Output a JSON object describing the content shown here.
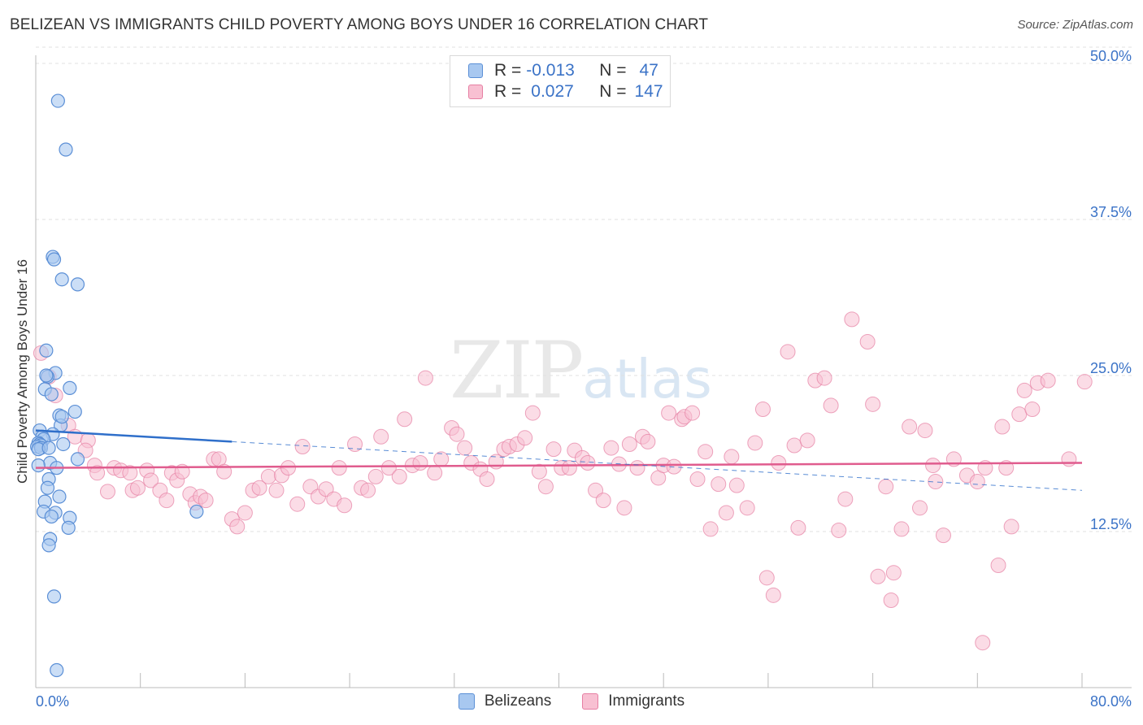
{
  "header": {
    "title": "BELIZEAN VS IMMIGRANTS CHILD POVERTY AMONG BOYS UNDER 16 CORRELATION CHART",
    "source": "Source: ZipAtlas.com"
  },
  "watermark": {
    "zip": "ZIP",
    "atlas": "atlas"
  },
  "legend": {
    "rows": [
      {
        "r_label": "R =",
        "r_value": "-0.013",
        "n_label": "N =",
        "n_value": "47",
        "color": "#a8c8f0",
        "border": "#5b8fd6"
      },
      {
        "r_label": "R =",
        "r_value": "0.027",
        "n_label": "N =",
        "n_value": "147",
        "color": "#f8c0d2",
        "border": "#e67fa3"
      }
    ]
  },
  "colors": {
    "blue_fill": "#a8c8f0",
    "blue_stroke": "#5b8fd6",
    "blue_line": "#2f6fca",
    "pink_fill": "#f8c0d2",
    "pink_stroke": "#e67fa3",
    "pink_line": "#e05c8e",
    "tick_label": "#3b73c7",
    "grid": "#e0e0e0"
  },
  "chart_data": {
    "type": "scatter",
    "title": "BELIZEAN VS IMMIGRANTS CHILD POVERTY AMONG BOYS UNDER 16 CORRELATION CHART",
    "xlabel": "",
    "ylabel": "Child Poverty Among Boys Under 16",
    "xlim": [
      0,
      80
    ],
    "ylim": [
      0,
      50
    ],
    "x_tick_labels": [
      "0.0%",
      "80.0%"
    ],
    "y_ticks": [
      12.5,
      25.0,
      37.5,
      50.0
    ],
    "y_tick_labels": [
      "12.5%",
      "25.0%",
      "37.5%",
      "50.0%"
    ],
    "grid": true,
    "legend_position": "top-center",
    "series": [
      {
        "name": "Belizeans",
        "trend": {
          "x": [
            0,
            15
          ],
          "y": [
            20.6,
            19.7
          ],
          "dashed_extension_to": [
            80,
            15.8
          ]
        },
        "points": [
          [
            1.7,
            47.0
          ],
          [
            2.3,
            43.1
          ],
          [
            1.3,
            34.5
          ],
          [
            1.4,
            34.3
          ],
          [
            2.0,
            32.7
          ],
          [
            3.2,
            32.3
          ],
          [
            0.8,
            27.0
          ],
          [
            1.5,
            25.2
          ],
          [
            0.9,
            24.9
          ],
          [
            2.6,
            24.0
          ],
          [
            0.7,
            23.9
          ],
          [
            1.2,
            23.5
          ],
          [
            3.0,
            22.1
          ],
          [
            1.8,
            21.8
          ],
          [
            1.9,
            21.0
          ],
          [
            0.3,
            20.6
          ],
          [
            1.3,
            20.3
          ],
          [
            0.5,
            20.1
          ],
          [
            0.6,
            19.9
          ],
          [
            0.2,
            19.6
          ],
          [
            0.3,
            19.5
          ],
          [
            0.4,
            19.4
          ],
          [
            2.1,
            19.5
          ],
          [
            0.1,
            19.3
          ],
          [
            0.4,
            19.2
          ],
          [
            0.2,
            19.1
          ],
          [
            1.0,
            19.2
          ],
          [
            3.2,
            18.3
          ],
          [
            1.1,
            18.0
          ],
          [
            1.6,
            17.6
          ],
          [
            0.2,
            17.8
          ],
          [
            1.0,
            16.7
          ],
          [
            0.9,
            16.0
          ],
          [
            1.8,
            15.3
          ],
          [
            0.7,
            14.9
          ],
          [
            0.6,
            14.1
          ],
          [
            1.5,
            14.0
          ],
          [
            1.2,
            13.7
          ],
          [
            2.6,
            13.6
          ],
          [
            2.5,
            12.8
          ],
          [
            1.1,
            11.9
          ],
          [
            1.0,
            11.4
          ],
          [
            1.4,
            7.3
          ],
          [
            1.6,
            1.4
          ],
          [
            12.3,
            14.1
          ],
          [
            0.8,
            25.0
          ],
          [
            2.0,
            21.7
          ]
        ]
      },
      {
        "name": "Immigrants",
        "trend": {
          "x": [
            0,
            80
          ],
          "y": [
            17.6,
            18.0
          ]
        },
        "points": [
          [
            0.4,
            26.8
          ],
          [
            1.0,
            24.9
          ],
          [
            1.5,
            23.4
          ],
          [
            2.5,
            21.0
          ],
          [
            3.0,
            20.1
          ],
          [
            4.0,
            19.8
          ],
          [
            3.8,
            19.0
          ],
          [
            4.5,
            17.8
          ],
          [
            4.7,
            17.2
          ],
          [
            5.5,
            15.7
          ],
          [
            6.0,
            17.6
          ],
          [
            6.5,
            17.4
          ],
          [
            7.2,
            17.2
          ],
          [
            7.4,
            15.8
          ],
          [
            7.8,
            16.0
          ],
          [
            8.5,
            17.4
          ],
          [
            8.8,
            16.6
          ],
          [
            9.5,
            15.8
          ],
          [
            10.0,
            15.0
          ],
          [
            10.4,
            17.2
          ],
          [
            10.8,
            16.6
          ],
          [
            11.2,
            17.3
          ],
          [
            11.8,
            15.5
          ],
          [
            12.2,
            14.8
          ],
          [
            12.6,
            15.3
          ],
          [
            13.0,
            15.0
          ],
          [
            13.6,
            18.3
          ],
          [
            14.0,
            18.3
          ],
          [
            14.4,
            17.3
          ],
          [
            15.0,
            13.5
          ],
          [
            15.4,
            12.9
          ],
          [
            16.0,
            14.0
          ],
          [
            16.6,
            15.8
          ],
          [
            17.1,
            16.0
          ],
          [
            17.8,
            16.9
          ],
          [
            18.4,
            15.8
          ],
          [
            18.8,
            17.0
          ],
          [
            19.3,
            17.6
          ],
          [
            20.0,
            14.7
          ],
          [
            20.4,
            19.3
          ],
          [
            21.0,
            16.1
          ],
          [
            21.6,
            15.3
          ],
          [
            22.2,
            15.9
          ],
          [
            22.8,
            15.1
          ],
          [
            23.2,
            17.6
          ],
          [
            23.6,
            14.6
          ],
          [
            24.4,
            19.5
          ],
          [
            24.9,
            16.0
          ],
          [
            25.4,
            15.8
          ],
          [
            26.0,
            16.9
          ],
          [
            26.4,
            20.1
          ],
          [
            27.0,
            17.6
          ],
          [
            27.8,
            16.9
          ],
          [
            28.2,
            21.5
          ],
          [
            28.8,
            17.8
          ],
          [
            29.4,
            18.0
          ],
          [
            29.8,
            24.8
          ],
          [
            30.5,
            17.2
          ],
          [
            31.0,
            18.3
          ],
          [
            31.8,
            20.8
          ],
          [
            32.2,
            20.3
          ],
          [
            32.8,
            19.2
          ],
          [
            33.3,
            18.0
          ],
          [
            34.0,
            17.5
          ],
          [
            34.5,
            16.7
          ],
          [
            35.2,
            18.1
          ],
          [
            35.8,
            19.1
          ],
          [
            36.2,
            19.3
          ],
          [
            36.8,
            19.5
          ],
          [
            37.4,
            20.0
          ],
          [
            38.0,
            22.0
          ],
          [
            38.5,
            17.3
          ],
          [
            39.0,
            16.1
          ],
          [
            39.6,
            19.1
          ],
          [
            40.2,
            17.6
          ],
          [
            40.8,
            17.6
          ],
          [
            41.2,
            19.0
          ],
          [
            41.8,
            18.4
          ],
          [
            42.2,
            18.0
          ],
          [
            42.8,
            15.8
          ],
          [
            43.4,
            15.0
          ],
          [
            44.0,
            19.2
          ],
          [
            44.6,
            17.9
          ],
          [
            45.0,
            14.4
          ],
          [
            45.4,
            19.5
          ],
          [
            46.0,
            17.6
          ],
          [
            46.4,
            20.1
          ],
          [
            46.8,
            19.7
          ],
          [
            47.6,
            16.8
          ],
          [
            48.0,
            17.8
          ],
          [
            48.4,
            22.0
          ],
          [
            48.8,
            17.7
          ],
          [
            49.4,
            21.5
          ],
          [
            49.6,
            21.7
          ],
          [
            50.2,
            22.0
          ],
          [
            50.6,
            16.7
          ],
          [
            51.2,
            18.9
          ],
          [
            51.6,
            12.7
          ],
          [
            52.2,
            16.3
          ],
          [
            52.8,
            14.0
          ],
          [
            53.2,
            18.5
          ],
          [
            53.6,
            16.2
          ],
          [
            54.4,
            14.4
          ],
          [
            55.0,
            19.6
          ],
          [
            55.6,
            22.3
          ],
          [
            55.9,
            8.8
          ],
          [
            56.4,
            7.4
          ],
          [
            56.8,
            18.0
          ],
          [
            57.5,
            26.9
          ],
          [
            58.0,
            19.4
          ],
          [
            58.3,
            12.8
          ],
          [
            59.0,
            19.8
          ],
          [
            59.6,
            24.6
          ],
          [
            60.3,
            24.8
          ],
          [
            60.8,
            22.6
          ],
          [
            61.4,
            12.6
          ],
          [
            61.9,
            15.1
          ],
          [
            62.4,
            29.5
          ],
          [
            63.6,
            27.7
          ],
          [
            64.0,
            22.7
          ],
          [
            64.4,
            8.9
          ],
          [
            65.0,
            16.1
          ],
          [
            65.4,
            7.0
          ],
          [
            65.6,
            9.2
          ],
          [
            66.2,
            12.7
          ],
          [
            66.8,
            20.9
          ],
          [
            67.6,
            14.4
          ],
          [
            68.0,
            20.6
          ],
          [
            68.6,
            17.8
          ],
          [
            68.8,
            16.5
          ],
          [
            69.4,
            12.2
          ],
          [
            70.2,
            18.3
          ],
          [
            71.2,
            17.0
          ],
          [
            72.0,
            16.5
          ],
          [
            72.4,
            3.6
          ],
          [
            72.6,
            17.6
          ],
          [
            73.6,
            9.8
          ],
          [
            73.9,
            20.9
          ],
          [
            74.6,
            12.9
          ],
          [
            75.2,
            21.9
          ],
          [
            75.6,
            23.8
          ],
          [
            76.2,
            22.3
          ],
          [
            76.6,
            24.4
          ],
          [
            77.4,
            24.6
          ],
          [
            80.2,
            24.5
          ],
          [
            79.0,
            18.3
          ],
          [
            74.2,
            17.6
          ]
        ]
      }
    ]
  },
  "bottom_legend": [
    {
      "label": "Belizeans",
      "color": "#a8c8f0",
      "border": "#5b8fd6"
    },
    {
      "label": "Immigrants",
      "color": "#f8c0d2",
      "border": "#e67fa3"
    }
  ]
}
